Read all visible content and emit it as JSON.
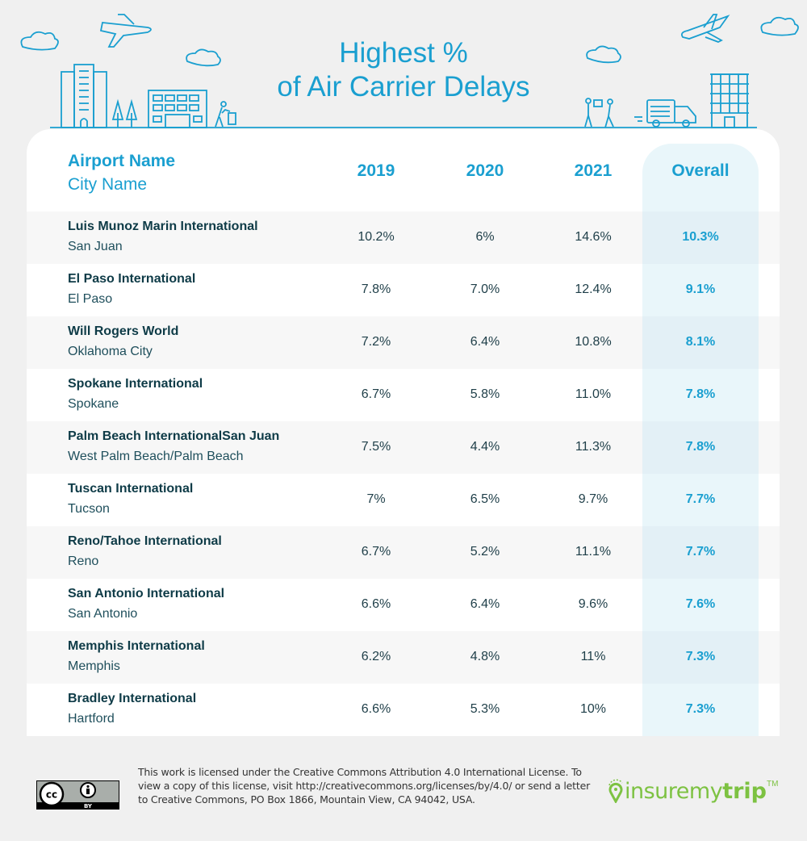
{
  "title": {
    "line1": "Highest %",
    "line2": "of Air Carrier Delays"
  },
  "colors": {
    "accent": "#1a9fd0",
    "dark_text": "#0e3b47",
    "overall_column_bg": "#e9f6fa",
    "brand_green": "#7dc242",
    "background": "#f0f0f0"
  },
  "table": {
    "headers": {
      "airport": "Airport Name",
      "city": "City Name",
      "years": [
        "2019",
        "2020",
        "2021"
      ],
      "overall": "Overall"
    },
    "rows": [
      {
        "airport": "Luis Munoz Marin International",
        "city": "San Juan",
        "y2019": "10.2%",
        "y2020": "6%",
        "y2021": "14.6%",
        "overall": "10.3%"
      },
      {
        "airport": "El Paso International",
        "city": "El Paso",
        "y2019": "7.8%",
        "y2020": "7.0%",
        "y2021": "12.4%",
        "overall": "9.1%"
      },
      {
        "airport": "Will Rogers World",
        "city": "Oklahoma City",
        "y2019": "7.2%",
        "y2020": "6.4%",
        "y2021": "10.8%",
        "overall": "8.1%"
      },
      {
        "airport": "Spokane International",
        "city": "Spokane",
        "y2019": "6.7%",
        "y2020": "5.8%",
        "y2021": "11.0%",
        "overall": "7.8%"
      },
      {
        "airport": "Palm Beach InternationalSan Juan",
        "city": "West Palm Beach/Palm Beach",
        "y2019": "7.5%",
        "y2020": "4.4%",
        "y2021": "11.3%",
        "overall": "7.8%"
      },
      {
        "airport": "Tuscan International",
        "city": "Tucson",
        "y2019": "7%",
        "y2020": "6.5%",
        "y2021": "9.7%",
        "overall": "7.7%"
      },
      {
        "airport": "Reno/Tahoe International",
        "city": "Reno",
        "y2019": "6.7%",
        "y2020": "5.2%",
        "y2021": "11.1%",
        "overall": "7.7%"
      },
      {
        "airport": "San Antonio International",
        "city": "San Antonio",
        "y2019": "6.6%",
        "y2020": "6.4%",
        "y2021": "9.6%",
        "overall": "7.6%"
      },
      {
        "airport": "Memphis International",
        "city": "Memphis",
        "y2019": "6.2%",
        "y2020": "4.8%",
        "y2021": "11%",
        "overall": "7.3%"
      },
      {
        "airport": "Bradley International",
        "city": "Hartford",
        "y2019": "6.6%",
        "y2020": "5.3%",
        "y2021": "10%",
        "overall": "7.3%"
      }
    ]
  },
  "footer": {
    "license_badge": {
      "icon": "cc-by-icon",
      "label": "BY"
    },
    "license_text": "This work is licensed under the Creative Commons Attribution 4.0 International License. To view a copy of this license, visit http://creativecommons.org/licenses/by/4.0/ or send a letter to Creative Commons, PO Box 1866, Mountain View, CA 94042, USA.",
    "logo": {
      "part1": "insuremy",
      "part2": "trip",
      "tm": "TM"
    }
  },
  "illustration": {
    "icons": [
      "airplane-icon",
      "cloud-icon",
      "office-building-icon",
      "tree-icon",
      "hotel-building-icon",
      "porter-with-luggage-icon",
      "package-handoff-icon",
      "delivery-truck-icon",
      "apartment-building-icon"
    ]
  }
}
